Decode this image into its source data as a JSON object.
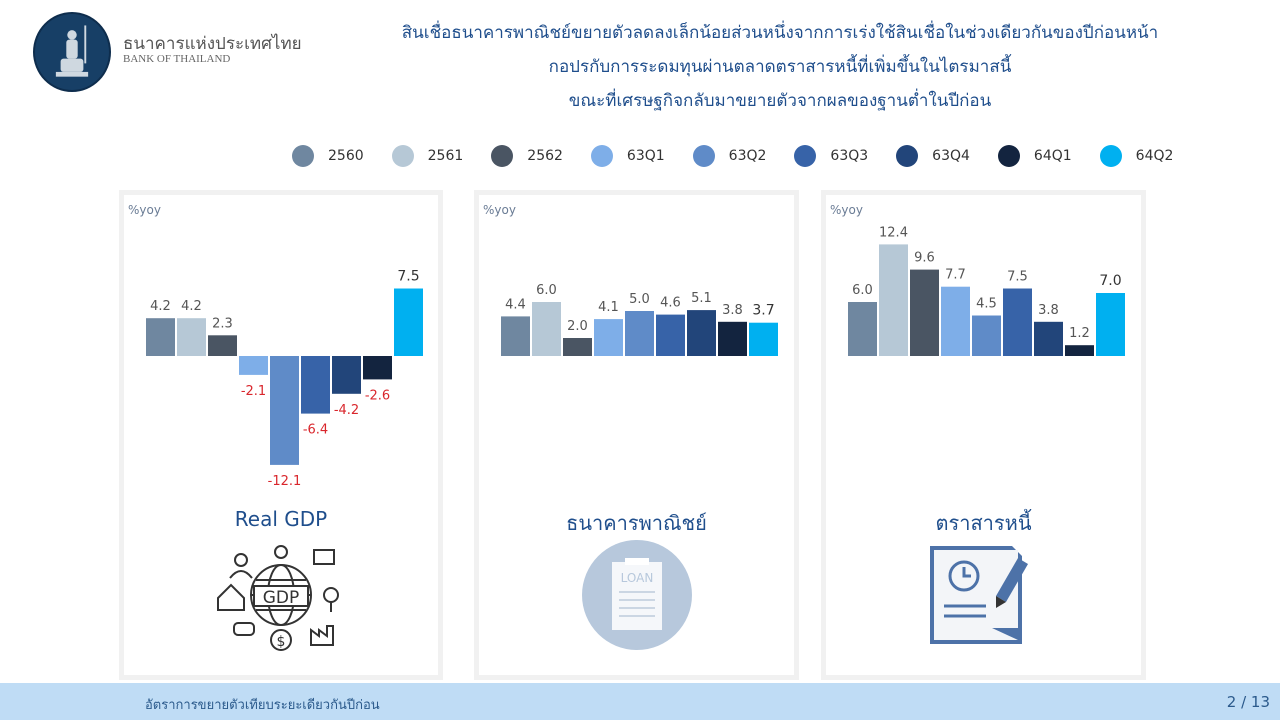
{
  "header": {
    "org_th": "ธนาคารแห่งประเทศไทย",
    "org_en": "BANK OF THAILAND",
    "title_lines": [
      "สินเชื่อธนาคารพาณิชย์ขยายตัวลดลงเล็กน้อยส่วนหนึ่งจากการเร่งใช้สินเชื่อในช่วงเดียวกันของปีก่อนหน้า",
      "กอปรกับการระดมทุนผ่านตลาดตราสารหนี้ที่เพิ่มขึ้นในไตรมาสนี้",
      "ขณะที่เศรษฐกิจกลับมาขยายตัวจากผลของฐานต่ำในปีก่อน"
    ]
  },
  "legend": [
    {
      "label": "2560",
      "color": "#6f87a0"
    },
    {
      "label": "2561",
      "color": "#b6c8d6"
    },
    {
      "label": "2562",
      "color": "#4a5563"
    },
    {
      "label": "63Q1",
      "color": "#7eaee8"
    },
    {
      "label": "63Q2",
      "color": "#5f8bc8"
    },
    {
      "label": "63Q3",
      "color": "#3763a8"
    },
    {
      "label": "63Q4",
      "color": "#22457a"
    },
    {
      "label": "64Q1",
      "color": "#13243f"
    },
    {
      "label": "64Q2",
      "color": "#00b0f0"
    }
  ],
  "chart_data": [
    {
      "type": "bar",
      "title": "Real GDP",
      "ylabel": "%yoy",
      "categories": [
        "2560",
        "2561",
        "2562",
        "63Q1",
        "63Q2",
        "63Q3",
        "63Q4",
        "64Q1",
        "64Q2"
      ],
      "values": [
        4.2,
        4.2,
        2.3,
        -2.1,
        -12.1,
        -6.4,
        -4.2,
        -2.6,
        7.5
      ],
      "icon": "gdp-icon"
    },
    {
      "type": "bar",
      "title": "ธนาคารพาณิชย์",
      "ylabel": "%yoy",
      "categories": [
        "2560",
        "2561",
        "2562",
        "63Q1",
        "63Q2",
        "63Q3",
        "63Q4",
        "64Q1",
        "64Q2"
      ],
      "values": [
        4.4,
        6.0,
        2.0,
        4.1,
        5.0,
        4.6,
        5.1,
        3.8,
        3.7
      ],
      "icon": "loan-icon",
      "icon_text": "LOAN"
    },
    {
      "type": "bar",
      "title": "ตราสารหนี้",
      "ylabel": "%yoy",
      "categories": [
        "2560",
        "2561",
        "2562",
        "63Q1",
        "63Q2",
        "63Q3",
        "63Q4",
        "64Q1",
        "64Q2"
      ],
      "values": [
        6.0,
        12.4,
        9.6,
        7.7,
        4.5,
        7.5,
        3.8,
        1.2,
        7.0
      ],
      "icon": "bond-document-icon"
    }
  ],
  "footer": {
    "text": "อัตราการขยายตัวเทียบระยะเดียวกันปีก่อน",
    "page": "2 / 13"
  },
  "colors": {
    "negative_label": "#d9262c",
    "title": "#1f4e8c",
    "footer_bg": "#bfdcf5"
  }
}
